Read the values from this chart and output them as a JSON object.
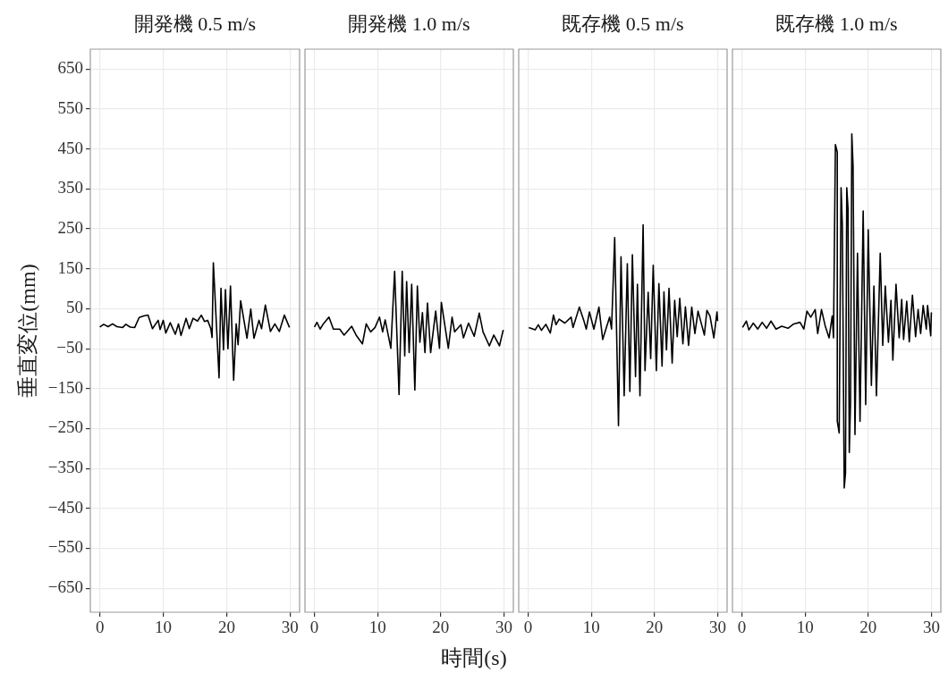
{
  "chart_data": [
    {
      "type": "line",
      "title": "開発機 0.5 m/s",
      "ylabel": "垂直変位(mm)",
      "xlim": [
        -1.5,
        31.5
      ],
      "xticks": [
        0,
        10,
        20,
        30
      ],
      "ylim": [
        -710,
        700
      ],
      "yticks": [
        -650,
        -550,
        -450,
        -350,
        -250,
        -150,
        -50,
        50,
        150,
        250,
        350,
        450,
        550,
        650
      ],
      "grid": true,
      "series": [
        {
          "color": "#000000",
          "x": [
            0,
            0.6,
            1.3,
            2,
            2.7,
            3.6,
            4.1,
            4.8,
            5.5,
            6.2,
            6.9,
            7.6,
            8.3,
            9.2,
            9.5,
            10,
            10.4,
            11.1,
            11.9,
            12.4,
            12.8,
            13.6,
            14.1,
            14.7,
            15.4,
            16,
            16.5,
            17,
            17.5,
            17.7,
            17.9,
            18.8,
            19.1,
            19.5,
            19.8,
            20.2,
            20.6,
            21.1,
            21.5,
            21.8,
            22.2,
            23.2,
            23.8,
            24.3,
            25.1,
            25.5,
            26.1,
            26.9,
            27.6,
            28.3,
            29.1,
            29.9
          ],
          "values": [
            4,
            11,
            5,
            12,
            5,
            3,
            11,
            4,
            3,
            28,
            32,
            34,
            0,
            21,
            -2,
            21,
            -11,
            15,
            -14,
            12,
            -17,
            26,
            0,
            26,
            19,
            34,
            18,
            21,
            0,
            -22,
            165,
            -123,
            101,
            -53,
            98,
            -50,
            107,
            -129,
            12,
            -40,
            70,
            -24,
            49,
            -24,
            21,
            0,
            59,
            -7,
            12,
            -7,
            34,
            3
          ]
        }
      ]
    },
    {
      "type": "line",
      "title": "開発機 1.0 m/s",
      "xlabel": "時間(s)",
      "xlim": [
        -1.5,
        31.5
      ],
      "xticks": [
        0,
        10,
        20,
        30
      ],
      "ylim": [
        -710,
        700
      ],
      "yticks": [
        -650,
        -550,
        -450,
        -350,
        -250,
        -150,
        -50,
        50,
        150,
        250,
        350,
        450,
        550,
        650
      ],
      "grid": true,
      "tick_labels": "x",
      "series": [
        {
          "color": "#000000",
          "x": [
            0,
            0.4,
            0.9,
            1.4,
            2.3,
            3,
            4,
            4.7,
            5.9,
            6.6,
            7.6,
            8.2,
            8.9,
            9.6,
            10.3,
            10.8,
            11.2,
            12.1,
            12.7,
            13.4,
            13.9,
            14.3,
            14.6,
            15,
            15.4,
            15.9,
            16.3,
            16.7,
            17.1,
            17.5,
            17.9,
            18.4,
            19.2,
            19.8,
            20.1,
            21.2,
            21.8,
            22.2,
            23.2,
            23.6,
            24.4,
            25.3,
            26.1,
            26.7,
            27.7,
            28.4,
            29.3,
            29.9
          ],
          "values": [
            4,
            16,
            -1,
            12,
            29,
            -1,
            -1,
            -16,
            6,
            -16,
            -38,
            12,
            -8,
            3,
            29,
            -8,
            22,
            -49,
            144,
            -165,
            144,
            -68,
            118,
            -60,
            111,
            -154,
            107,
            -34,
            40,
            -60,
            64,
            -60,
            44,
            -49,
            66,
            -49,
            29,
            -8,
            10,
            -23,
            14,
            -19,
            39,
            -8,
            -43,
            -16,
            -43,
            -3
          ]
        }
      ]
    },
    {
      "type": "line",
      "title": "既存機 0.5 m/s",
      "xlim": [
        -1.5,
        31.5
      ],
      "xticks": [
        0,
        10,
        20,
        30
      ],
      "ylim": [
        -710,
        700
      ],
      "yticks": [
        -650,
        -550,
        -450,
        -350,
        -250,
        -150,
        -50,
        50,
        150,
        250,
        350,
        450,
        550,
        650
      ],
      "grid": true,
      "tick_labels": "x",
      "series": [
        {
          "color": "#000000",
          "x": [
            0.1,
            1.1,
            1.6,
            2.1,
            2.8,
            3.5,
            4,
            4.4,
            4.9,
            5.8,
            6.8,
            7.1,
            8.1,
            8.8,
            9.2,
            9.7,
            10.4,
            11.2,
            11.8,
            12.9,
            13.2,
            13.7,
            14.3,
            14.7,
            15.2,
            15.7,
            16.1,
            16.5,
            17,
            17.3,
            17.7,
            18.2,
            18.5,
            19,
            19.4,
            19.8,
            20.3,
            20.7,
            21.2,
            21.5,
            21.9,
            22.3,
            22.8,
            23.2,
            23.6,
            24,
            24.5,
            24.9,
            25.4,
            25.9,
            26.4,
            26.9,
            27.9,
            28.3,
            28.8,
            29.4,
            29.9,
            30
          ],
          "values": [
            3,
            -3,
            10,
            -4,
            11,
            -11,
            34,
            10,
            24,
            14,
            29,
            3,
            54,
            21,
            -1,
            42,
            -1,
            54,
            -27,
            29,
            -1,
            228,
            -243,
            180,
            -168,
            163,
            -157,
            185,
            -120,
            111,
            -168,
            260,
            -105,
            91,
            -75,
            159,
            -105,
            113,
            -94,
            92,
            -53,
            101,
            -86,
            71,
            -20,
            76,
            -38,
            55,
            -42,
            54,
            -12,
            44,
            -16,
            46,
            31,
            -23,
            42,
            19
          ]
        }
      ]
    },
    {
      "type": "line",
      "title": "既存機 1.0 m/s",
      "xlim": [
        -1.5,
        31.5
      ],
      "xticks": [
        0,
        10,
        20,
        30
      ],
      "ylim": [
        -710,
        700
      ],
      "yticks": [
        -650,
        -550,
        -450,
        -350,
        -250,
        -150,
        -50,
        50,
        150,
        250,
        350,
        450,
        550,
        650
      ],
      "grid": true,
      "tick_labels": "x",
      "series": [
        {
          "color": "#000000",
          "x": [
            0.1,
            0.7,
            1.1,
            1.8,
            2.5,
            3.2,
            3.9,
            4.6,
            5.4,
            6.3,
            7.3,
            8.2,
            9.2,
            9.8,
            10.3,
            10.9,
            11.6,
            12,
            12.6,
            13.2,
            13.8,
            14.3,
            14.5,
            14.8,
            15.1,
            15.1,
            15.4,
            15.7,
            15.9,
            16.2,
            16.4,
            16.6,
            16.8,
            17,
            17.2,
            17.4,
            17.6,
            17.9,
            18.3,
            18.7,
            19.2,
            19.6,
            20,
            20.5,
            20.9,
            21.3,
            21.9,
            22.3,
            22.7,
            23.2,
            23.6,
            23.9,
            24.4,
            24.9,
            25.3,
            25.6,
            26.1,
            26.5,
            27,
            27.5,
            27.9,
            28.3,
            28.7,
            29.2,
            29.4,
            29.9,
            30
          ],
          "values": [
            3,
            19,
            -3,
            14,
            -1,
            16,
            1,
            19,
            -1,
            6,
            1,
            12,
            16,
            -1,
            44,
            29,
            48,
            -12,
            48,
            6,
            -23,
            32,
            -23,
            461,
            442,
            -232,
            -261,
            353,
            260,
            -399,
            -362,
            353,
            301,
            -310,
            -183,
            488,
            408,
            -265,
            189,
            -232,
            295,
            -190,
            248,
            -142,
            107,
            -168,
            189,
            -42,
            107,
            -34,
            71,
            -79,
            111,
            -23,
            73,
            -27,
            69,
            -33,
            84,
            -20,
            48,
            -12,
            58,
            -1,
            58,
            -18,
            41
          ]
        }
      ]
    }
  ]
}
